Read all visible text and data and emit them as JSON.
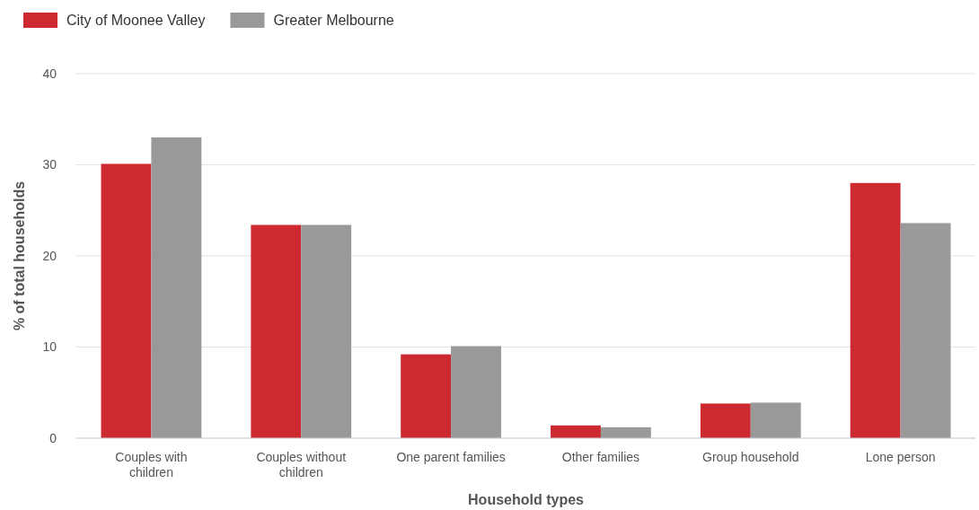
{
  "chart_data": {
    "type": "bar",
    "xlabel": "Household types",
    "ylabel": "% of total households",
    "categories": [
      "Couples with children",
      "Couples without children",
      "One parent families",
      "Other families",
      "Group household",
      "Lone person"
    ],
    "series": [
      {
        "name": "City of Moonee Valley",
        "color": "#cc2a30",
        "values": [
          30.1,
          23.4,
          9.2,
          1.4,
          3.8,
          28.0
        ]
      },
      {
        "name": "Greater Melbourne",
        "color": "#999999",
        "values": [
          33.0,
          23.4,
          10.1,
          1.2,
          3.9,
          23.6
        ]
      }
    ],
    "ylim": [
      0,
      40
    ],
    "yticks": [
      0,
      10,
      20,
      30,
      40
    ],
    "grid": "y",
    "legend": "top left"
  }
}
